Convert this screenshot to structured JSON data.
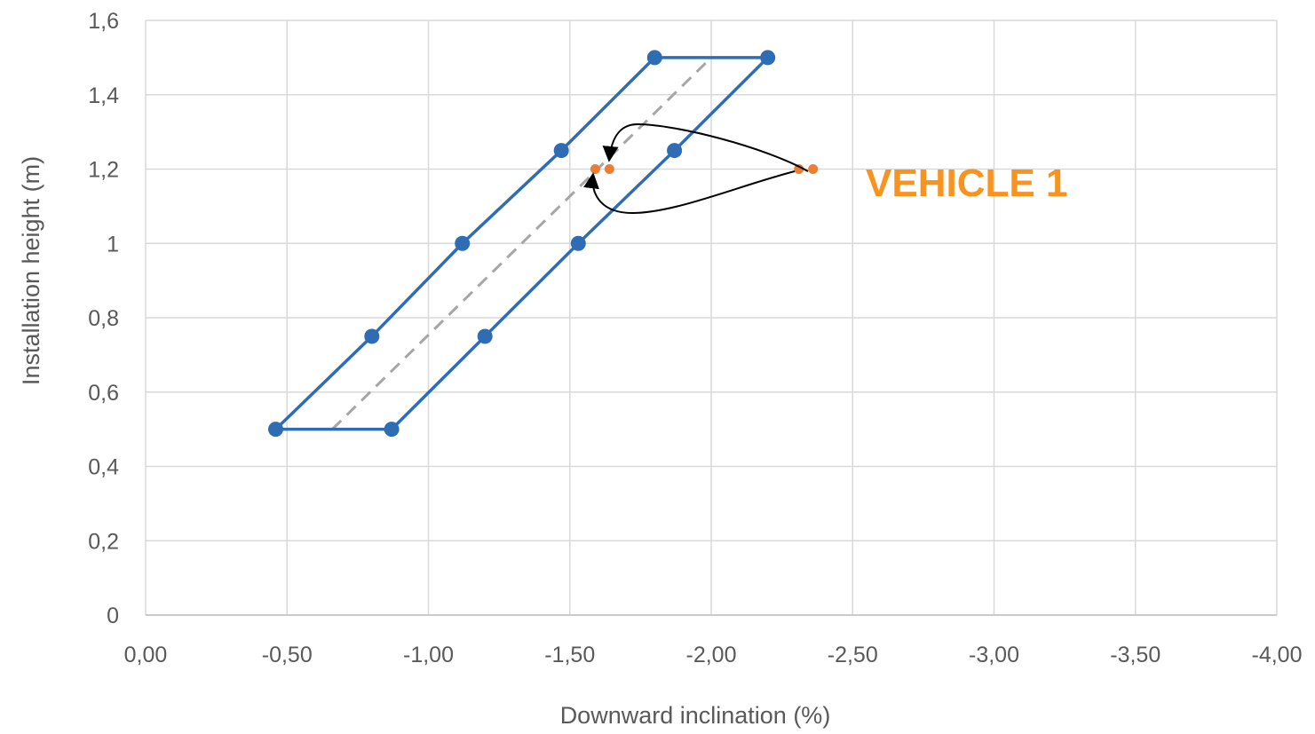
{
  "chart_data": {
    "type": "scatter",
    "title": "",
    "xlabel": "Downward inclination (%)",
    "ylabel": "Installation height (m)",
    "xlim": [
      0,
      -4
    ],
    "ylim": [
      0,
      1.6
    ],
    "x_ticks": [
      {
        "value": 0,
        "label": "0,00"
      },
      {
        "value": -0.5,
        "label": "-0,50"
      },
      {
        "value": -1.0,
        "label": "-1,00"
      },
      {
        "value": -1.5,
        "label": "-1,50"
      },
      {
        "value": -2.0,
        "label": "-2,00"
      },
      {
        "value": -2.5,
        "label": "-2,50"
      },
      {
        "value": -3.0,
        "label": "-3,00"
      },
      {
        "value": -3.5,
        "label": "-3,50"
      },
      {
        "value": -4.0,
        "label": "-4,00"
      }
    ],
    "y_ticks": [
      {
        "value": 0,
        "label": "0"
      },
      {
        "value": 0.2,
        "label": "0,2"
      },
      {
        "value": 0.4,
        "label": "0,4"
      },
      {
        "value": 0.6,
        "label": "0,6"
      },
      {
        "value": 0.8,
        "label": "0,8"
      },
      {
        "value": 1.0,
        "label": "1"
      },
      {
        "value": 1.2,
        "label": "1,2"
      },
      {
        "value": 1.4,
        "label": "1,4"
      },
      {
        "value": 1.6,
        "label": "1,6"
      }
    ],
    "grid": true,
    "series": [
      {
        "kind": "polygon",
        "color": "#2e6db4",
        "points": [
          {
            "x": -0.46,
            "y": 0.5
          },
          {
            "x": -0.8,
            "y": 0.75
          },
          {
            "x": -1.12,
            "y": 1.0
          },
          {
            "x": -1.47,
            "y": 1.25
          },
          {
            "x": -1.8,
            "y": 1.5
          },
          {
            "x": -2.2,
            "y": 1.5
          },
          {
            "x": -1.87,
            "y": 1.25
          },
          {
            "x": -1.53,
            "y": 1.0
          },
          {
            "x": -1.2,
            "y": 0.75
          },
          {
            "x": -0.87,
            "y": 0.5
          }
        ]
      },
      {
        "kind": "dashed-line",
        "color": "#a6a6a6",
        "points": [
          {
            "x": -0.66,
            "y": 0.5
          },
          {
            "x": -2.0,
            "y": 1.5
          }
        ]
      },
      {
        "kind": "points",
        "color": "#ed7d31",
        "points": [
          {
            "x": -1.59,
            "y": 1.2
          },
          {
            "x": -1.64,
            "y": 1.2
          },
          {
            "x": -2.31,
            "y": 1.2
          },
          {
            "x": -2.36,
            "y": 1.2
          }
        ]
      }
    ],
    "annotations": [
      {
        "text": "VEHICLE 1",
        "color": "#f7931e"
      }
    ]
  }
}
